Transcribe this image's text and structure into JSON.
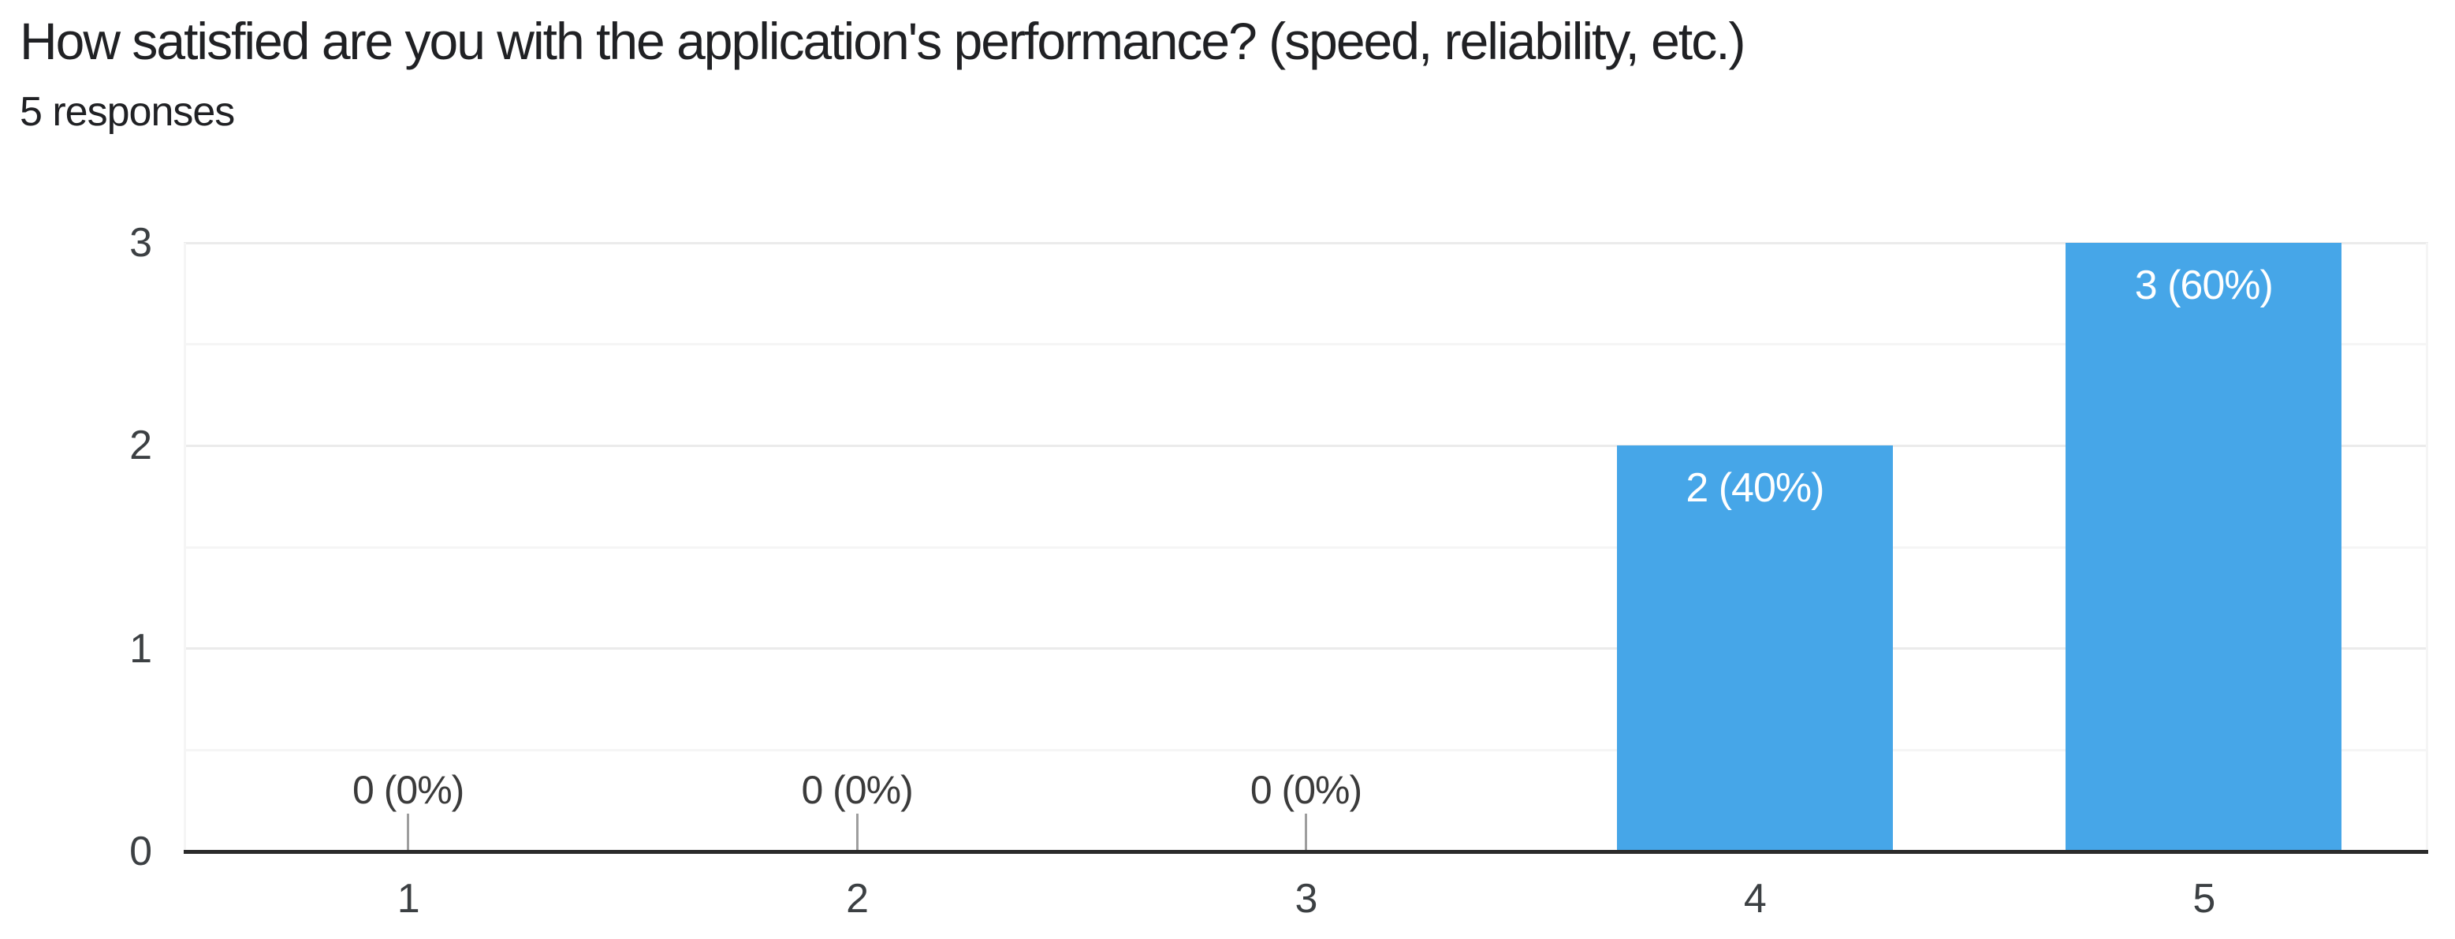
{
  "header": {
    "title": "How satisfied are you with the application's performance? (speed, reliability, etc.)",
    "responses": "5 responses"
  },
  "chart_data": {
    "type": "bar",
    "title": "How satisfied are you with the application's performance? (speed, reliability, etc.)",
    "subtitle": "5 responses",
    "categories": [
      "1",
      "2",
      "3",
      "4",
      "5"
    ],
    "values": [
      0,
      0,
      0,
      2,
      3
    ],
    "bar_labels": [
      "0 (0%)",
      "0 (0%)",
      "0 (0%)",
      "2 (40%)",
      "3 (60%)"
    ],
    "total_responses": 5,
    "xlabel": "",
    "ylabel": "",
    "ylim": [
      0,
      3
    ],
    "y_ticks": [
      0,
      1,
      2,
      3
    ],
    "grid": true,
    "minor_grid_step": 0.5,
    "legend_position": "none",
    "colors": {
      "bar": "#46a6e8",
      "bar_label_text": "#ffffff",
      "annotation_text": "#3b3b3b",
      "axis_text": "#3c4043",
      "baseline": "#2b2b2b",
      "gridline_major": "#ebebeb",
      "gridline_minor": "#f5f5f5",
      "zero_stem": "#9e9e9e",
      "title_text": "#202124",
      "background": "#ffffff"
    }
  }
}
